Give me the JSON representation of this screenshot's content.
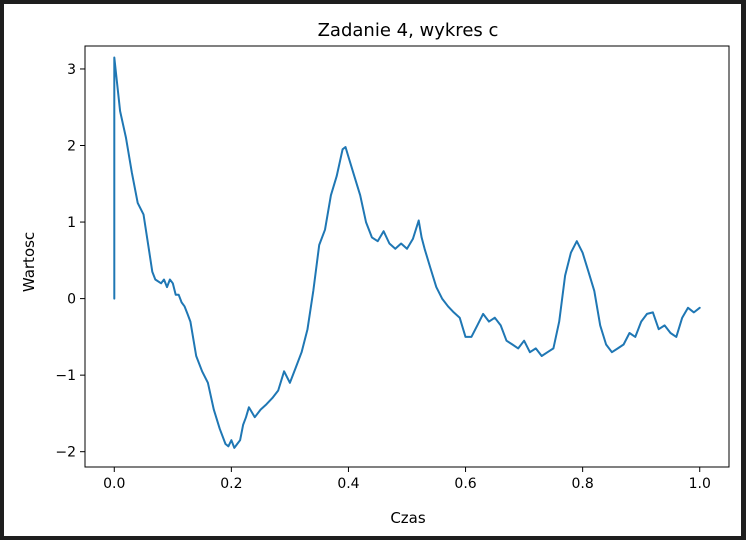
{
  "chart_data": {
    "type": "line",
    "title": "Zadanie 4, wykres c",
    "xlabel": "Czas",
    "ylabel": "Wartosc",
    "xlim": [
      -0.05,
      1.05
    ],
    "ylim": [
      -2.2,
      3.3
    ],
    "xticks": [
      0.0,
      0.2,
      0.4,
      0.6,
      0.8,
      1.0
    ],
    "xtick_labels": [
      "0.0",
      "0.2",
      "0.4",
      "0.6",
      "0.8",
      "1.0"
    ],
    "yticks": [
      -2,
      -1,
      0,
      1,
      2,
      3
    ],
    "ytick_labels": [
      "−2",
      "−1",
      "0",
      "1",
      "2",
      "3"
    ],
    "grid": false,
    "legend": "none",
    "color": "#1f77b4",
    "series": [
      {
        "x": [
          0.0,
          0.0,
          0.005,
          0.01,
          0.02,
          0.03,
          0.04,
          0.05,
          0.06,
          0.065,
          0.07,
          0.08,
          0.085,
          0.09,
          0.095,
          0.1,
          0.105,
          0.11,
          0.115,
          0.12,
          0.125,
          0.13,
          0.14,
          0.15,
          0.16,
          0.17,
          0.18,
          0.19,
          0.195,
          0.2,
          0.205,
          0.21,
          0.215,
          0.22,
          0.225,
          0.23,
          0.24,
          0.25,
          0.26,
          0.27,
          0.28,
          0.29,
          0.3,
          0.31,
          0.32,
          0.33,
          0.34,
          0.35,
          0.36,
          0.37,
          0.38,
          0.39,
          0.395,
          0.4,
          0.41,
          0.42,
          0.43,
          0.44,
          0.45,
          0.46,
          0.47,
          0.48,
          0.49,
          0.5,
          0.51,
          0.52,
          0.525,
          0.53,
          0.54,
          0.55,
          0.56,
          0.57,
          0.58,
          0.59,
          0.6,
          0.61,
          0.62,
          0.63,
          0.64,
          0.65,
          0.66,
          0.67,
          0.68,
          0.69,
          0.7,
          0.71,
          0.72,
          0.73,
          0.74,
          0.75,
          0.76,
          0.77,
          0.78,
          0.79,
          0.8,
          0.81,
          0.82,
          0.83,
          0.84,
          0.85,
          0.86,
          0.87,
          0.88,
          0.89,
          0.9,
          0.91,
          0.92,
          0.93,
          0.94,
          0.95,
          0.96,
          0.97,
          0.98,
          0.99,
          1.0
        ],
        "y": [
          0.0,
          3.15,
          2.8,
          2.45,
          2.1,
          1.65,
          1.25,
          1.1,
          0.6,
          0.35,
          0.25,
          0.2,
          0.25,
          0.15,
          0.25,
          0.2,
          0.05,
          0.05,
          -0.05,
          -0.1,
          -0.2,
          -0.3,
          -0.75,
          -0.95,
          -1.1,
          -1.45,
          -1.7,
          -1.9,
          -1.93,
          -1.85,
          -1.95,
          -1.9,
          -1.85,
          -1.65,
          -1.55,
          -1.42,
          -1.55,
          -1.45,
          -1.38,
          -1.3,
          -1.2,
          -0.95,
          -1.1,
          -0.9,
          -0.7,
          -0.4,
          0.1,
          0.7,
          0.9,
          1.35,
          1.6,
          1.95,
          1.98,
          1.85,
          1.6,
          1.35,
          1.0,
          0.8,
          0.75,
          0.88,
          0.72,
          0.65,
          0.72,
          0.65,
          0.78,
          1.02,
          0.8,
          0.65,
          0.4,
          0.15,
          0.0,
          -0.1,
          -0.18,
          -0.25,
          -0.5,
          -0.5,
          -0.35,
          -0.2,
          -0.3,
          -0.25,
          -0.35,
          -0.55,
          -0.6,
          -0.65,
          -0.55,
          -0.7,
          -0.65,
          -0.75,
          -0.7,
          -0.65,
          -0.3,
          0.3,
          0.6,
          0.75,
          0.6,
          0.35,
          0.1,
          -0.35,
          -0.6,
          -0.7,
          -0.65,
          -0.6,
          -0.45,
          -0.5,
          -0.3,
          -0.2,
          -0.18,
          -0.4,
          -0.35,
          -0.45,
          -0.5,
          -0.25,
          -0.12,
          -0.18,
          -0.12
        ]
      }
    ]
  }
}
